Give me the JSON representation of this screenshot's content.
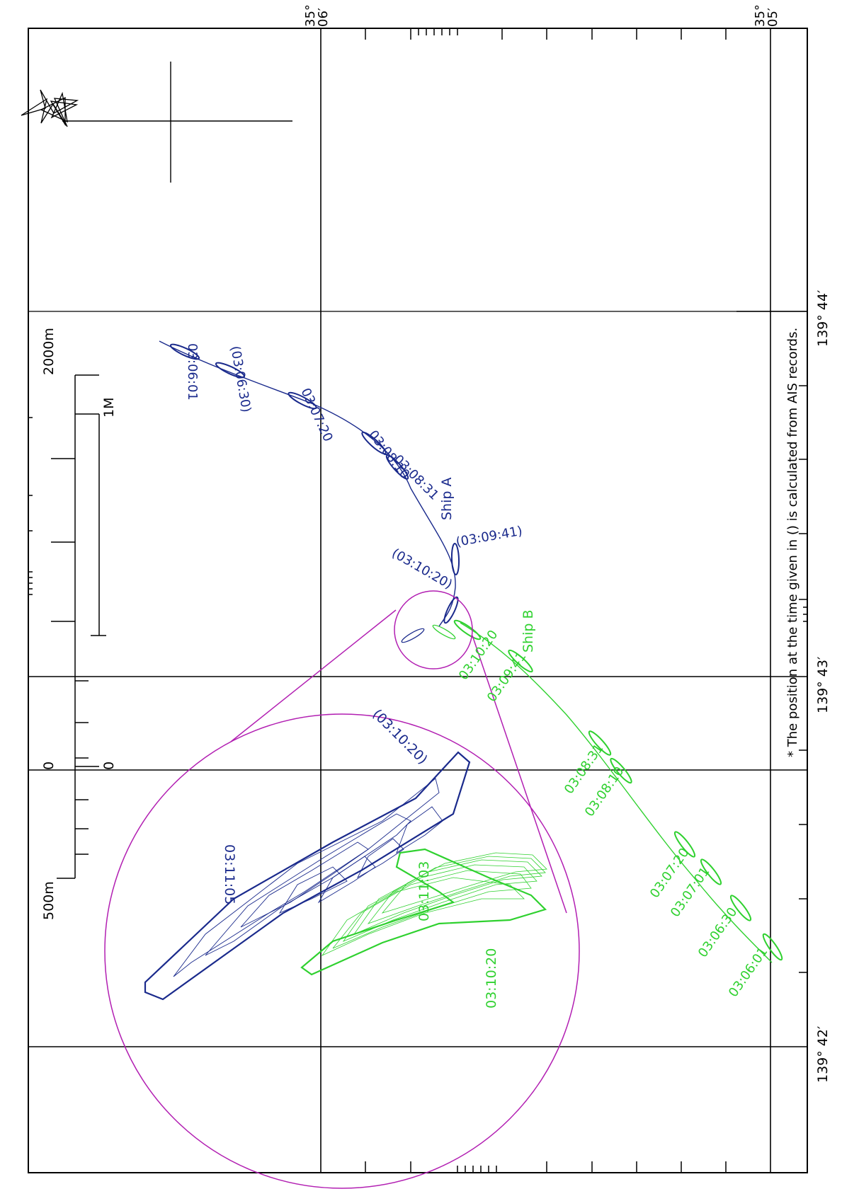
{
  "colors": {
    "frame": "#000000",
    "ship_a": "#1a2a8c",
    "ship_b": "#2fd12f",
    "zoom": "#b21fb2",
    "note": "#000000"
  },
  "icons": {
    "north": "star-icon",
    "compass": "crosshair-icon"
  },
  "lat_labels": [
    {
      "deg": "35°",
      "min": "06′"
    },
    {
      "deg": "35°",
      "min": "05′"
    }
  ],
  "lon_labels": [
    "139° 44′",
    "139° 43′",
    "139° 42′"
  ],
  "note": "* The position at the time given in () is calculated from AIS records.",
  "scale": {
    "top_left": "2000m",
    "top_right": "1M",
    "mid_left": "0",
    "mid_right": "0",
    "bottom_left": "500m"
  },
  "ship_a": {
    "name": "Ship A",
    "times": [
      "03:06:01",
      "(03:06:30)",
      "03:07:20",
      "03:08:10",
      "03:08:31",
      "(03:09:41)",
      "(03:10:20)"
    ]
  },
  "ship_b": {
    "name": "Ship B",
    "times": [
      "03:10:20",
      "03:09:41",
      "03:08:31",
      "03:08:10",
      "03:07:20",
      "03:07:01",
      "03:06:30",
      "03:06:01"
    ]
  },
  "zoom": {
    "ship_a_labels": [
      "(03:10:20)",
      "03:11:05"
    ],
    "ship_b_labels": [
      "03:11:03",
      "03:10:20"
    ]
  }
}
